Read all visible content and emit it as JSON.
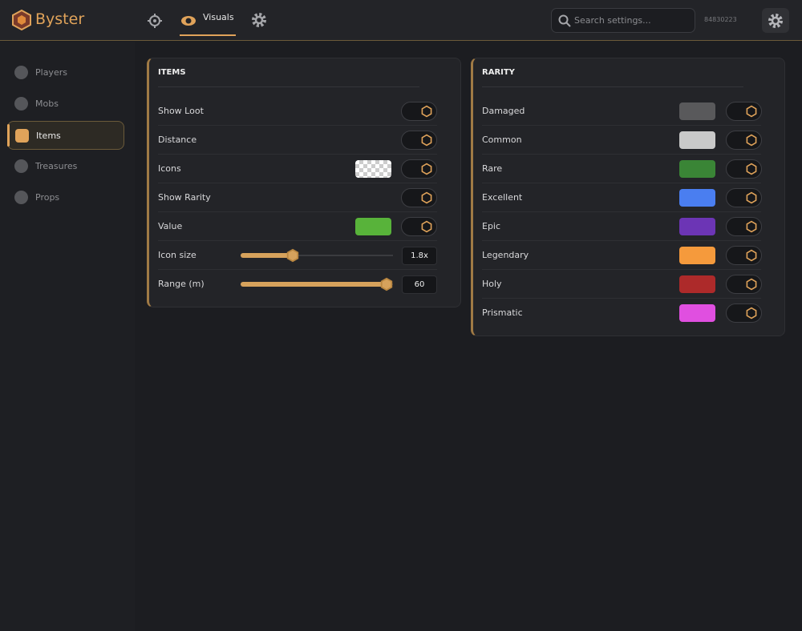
{
  "header": {
    "brand": "Byster",
    "active_tab": "Visuals",
    "search_placeholder": "Search settings...",
    "user_id": "84830223"
  },
  "sidebar": {
    "items": [
      {
        "label": "Players",
        "active": false
      },
      {
        "label": "Mobs",
        "active": false
      },
      {
        "label": "Items",
        "active": true
      },
      {
        "label": "Treasures",
        "active": false
      },
      {
        "label": "Props",
        "active": false
      }
    ]
  },
  "items_panel": {
    "title": "ITEMS",
    "rows": [
      {
        "label": "Show Loot",
        "toggle": true
      },
      {
        "label": "Distance",
        "toggle": true
      },
      {
        "label": "Icons",
        "swatch": "transparent",
        "toggle": true
      },
      {
        "label": "Show Rarity",
        "toggle": true
      },
      {
        "label": "Value",
        "swatch": "#58b33a",
        "toggle": true
      },
      {
        "label": "Icon size",
        "slider": "1.8x"
      },
      {
        "label": "Range (m)",
        "slider": "60"
      }
    ]
  },
  "rarity_panel": {
    "title": "RARITY",
    "rows": [
      {
        "label": "Damaged",
        "swatch": "#59595b",
        "toggle": true
      },
      {
        "label": "Common",
        "swatch": "#c9c9c9",
        "toggle": true
      },
      {
        "label": "Rare",
        "swatch": "#3a8536",
        "toggle": true
      },
      {
        "label": "Excellent",
        "swatch": "#4a7ef0",
        "toggle": true
      },
      {
        "label": "Epic",
        "swatch": "#6c35b5",
        "toggle": true
      },
      {
        "label": "Legendary",
        "swatch": "#f59a3c",
        "toggle": true
      },
      {
        "label": "Holy",
        "swatch": "#ad2a2a",
        "toggle": true
      },
      {
        "label": "Prismatic",
        "swatch": "#e04fe0",
        "toggle": true
      }
    ]
  }
}
